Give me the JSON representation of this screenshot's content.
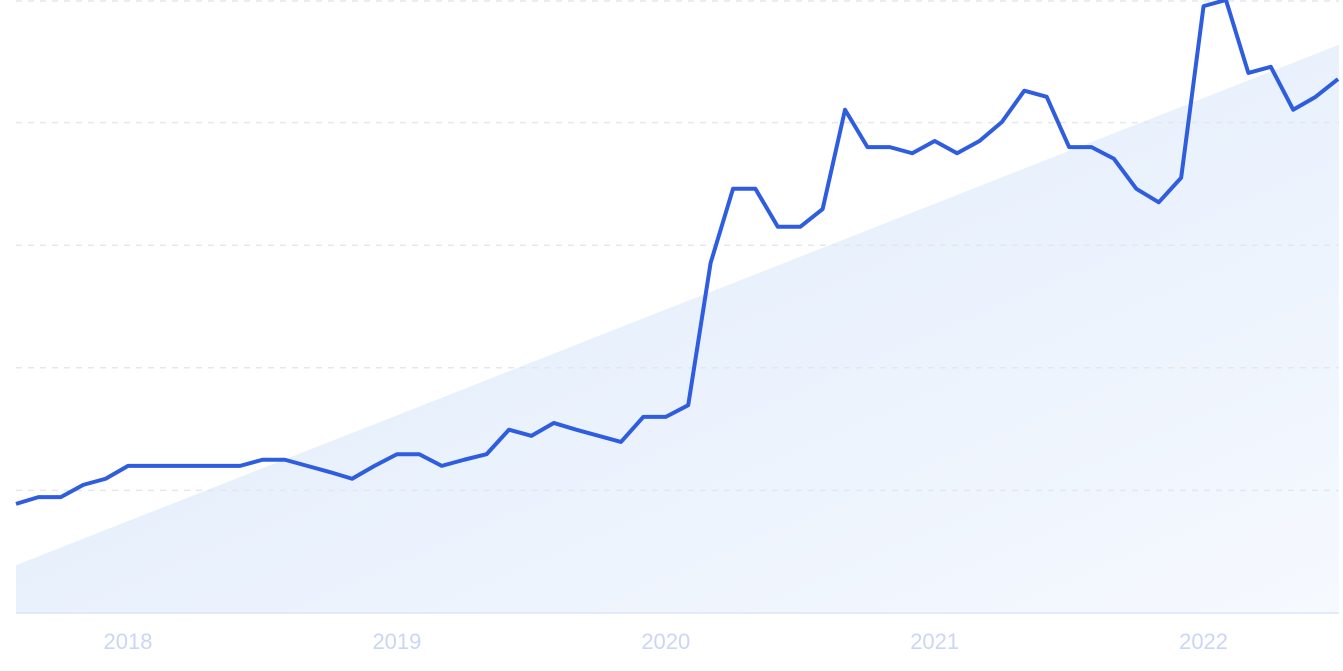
{
  "chart_data": {
    "type": "line",
    "categories": [
      null,
      null,
      null,
      null,
      null,
      "2018",
      null,
      null,
      null,
      null,
      null,
      null,
      null,
      null,
      null,
      null,
      null,
      "2019",
      null,
      null,
      null,
      null,
      null,
      null,
      null,
      null,
      null,
      null,
      null,
      "2020",
      null,
      null,
      null,
      null,
      null,
      null,
      null,
      null,
      null,
      null,
      null,
      "2021",
      null,
      null,
      null,
      null,
      null,
      null,
      null,
      null,
      null,
      null,
      null,
      "2022",
      null,
      null,
      null,
      null,
      null,
      null
    ],
    "series": [
      {
        "color": "#2f5de0",
        "values": [
          17.8,
          18.9,
          18.9,
          20.9,
          21.9,
          24.0,
          24.0,
          24.0,
          24.0,
          24.0,
          24.0,
          25.0,
          25.0,
          24.0,
          23.0,
          21.9,
          24.0,
          25.9,
          25.9,
          24.0,
          25.0,
          25.9,
          29.9,
          28.9,
          31.0,
          29.9,
          28.9,
          27.9,
          32.0,
          32.0,
          33.9,
          57.1,
          69.2,
          69.2,
          63.0,
          63.0,
          65.9,
          82.1,
          76.0,
          76.0,
          75.0,
          77.0,
          75.0,
          77.0,
          80.1,
          85.2,
          84.2,
          76.0,
          76.0,
          74.1,
          69.2,
          67.0,
          71.0,
          99.0,
          100,
          88.1,
          89.1,
          82.1,
          84.2,
          87.1
        ]
      }
    ],
    "trend": [
      7.8,
      92.7
    ],
    "ylim": [
      0,
      100
    ],
    "yticks": [
      0,
      20,
      40,
      60,
      80,
      100
    ],
    "grid": true
  }
}
